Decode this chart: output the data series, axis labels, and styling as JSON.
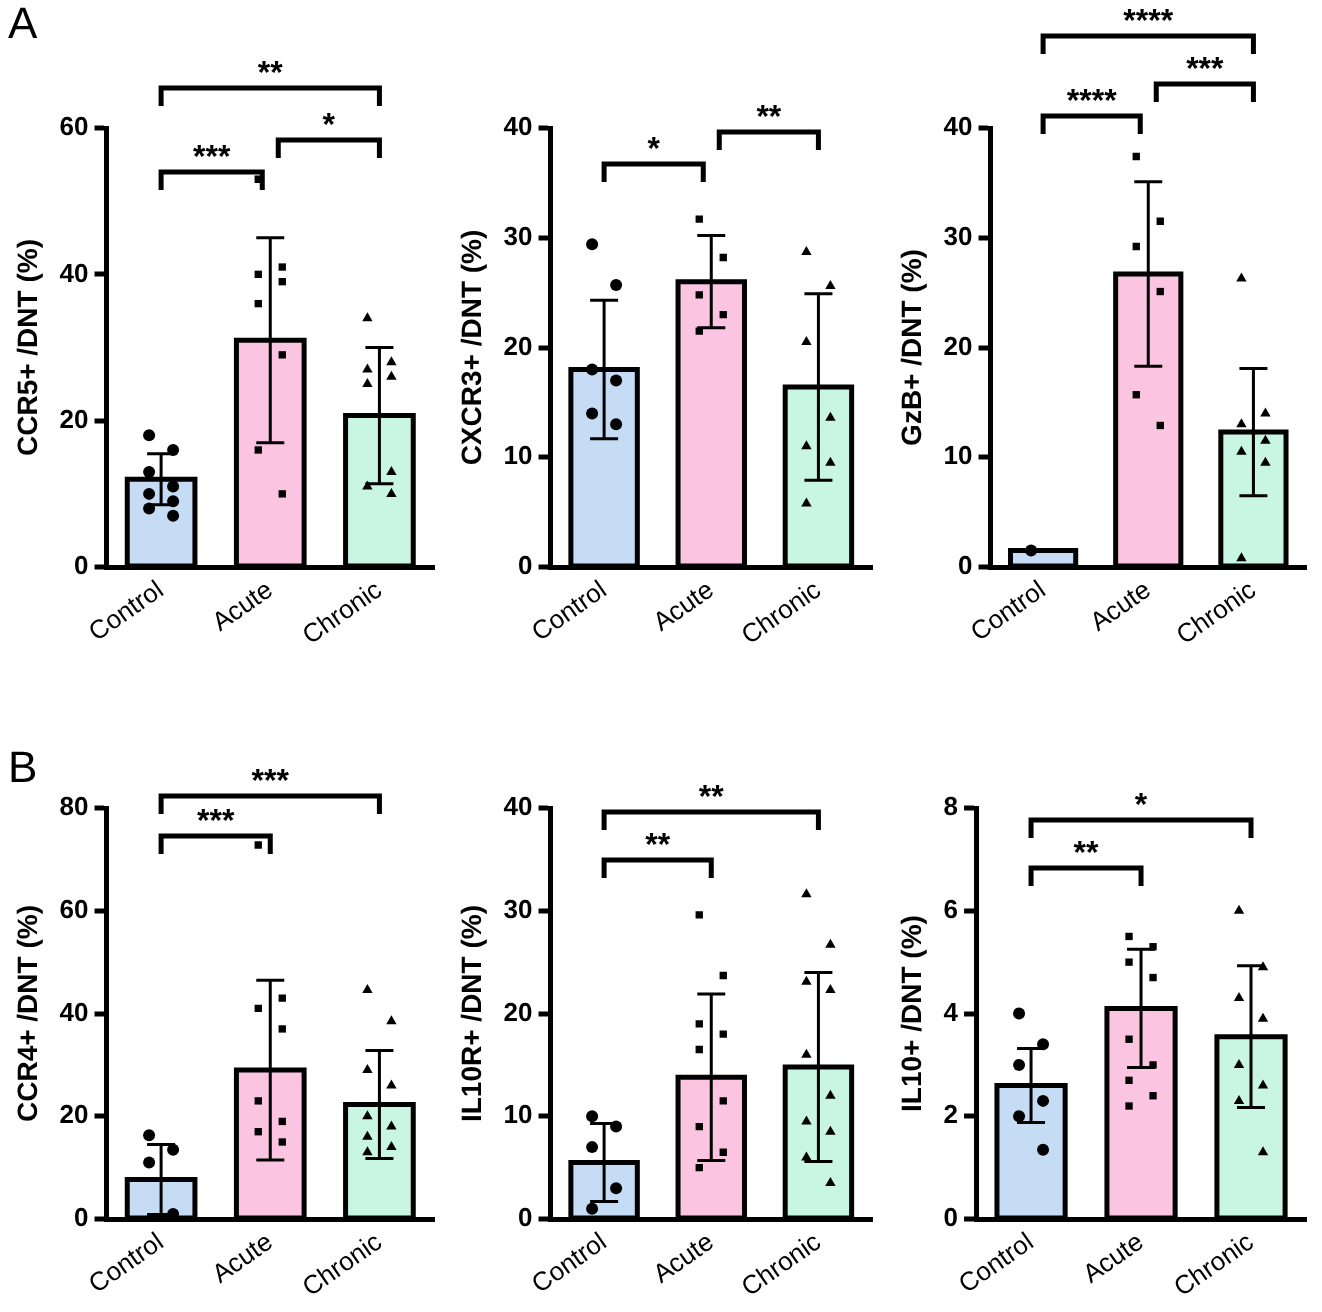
{
  "chart_data": [
    {
      "type": "bar",
      "ylabel": "CCR5+ /DNT (%)",
      "categories": [
        "Control",
        "Acute",
        "Chronic"
      ],
      "ylim": [
        0,
        60
      ],
      "yticks": [
        0,
        20,
        40,
        60
      ],
      "grid": false,
      "annotations": [
        "A",
        "***",
        "*",
        "**"
      ],
      "series": [
        {
          "colors": [
            "#c6dcf5",
            "#fbc4e0",
            "#c9f5e3"
          ],
          "values": [
            12,
            31,
            20.7
          ],
          "errors": [
            3.5,
            14,
            9.3
          ]
        },
        {
          "type": "scatter",
          "marker": "circle",
          "color": "#000000",
          "x": [
            "Control",
            "Control",
            "Control",
            "Control",
            "Control",
            "Control",
            "Control",
            "Control"
          ],
          "values": [
            18,
            16,
            13,
            11,
            10,
            9,
            8,
            7
          ]
        },
        {
          "type": "scatter",
          "marker": "square",
          "color": "#000000",
          "x": [
            "Acute",
            "Acute",
            "Acute",
            "Acute",
            "Acute",
            "Acute",
            "Acute",
            "Acute"
          ],
          "values": [
            53,
            41,
            40,
            39,
            36,
            29,
            16,
            10
          ]
        },
        {
          "type": "scatter",
          "marker": "triangle",
          "color": "#000000",
          "x": [
            "Chronic",
            "Chronic",
            "Chronic",
            "Chronic",
            "Chronic",
            "Chronic",
            "Chronic",
            "Chronic"
          ],
          "values": [
            34,
            28,
            27,
            26,
            25,
            13,
            11,
            10
          ]
        }
      ]
    },
    {
      "type": "bar",
      "ylabel": "CXCR3+ /DNT (%)",
      "categories": [
        "Control",
        "Acute",
        "Chronic"
      ],
      "ylim": [
        0,
        40
      ],
      "yticks": [
        0,
        10,
        20,
        30,
        40
      ],
      "grid": false,
      "annotations": [
        "*",
        "**"
      ],
      "series": [
        {
          "colors": [
            "#c6dcf5",
            "#fbc4e0",
            "#c9f5e3"
          ],
          "values": [
            18,
            26,
            16.4
          ],
          "errors": [
            6.3,
            4.2,
            8.5
          ]
        },
        {
          "type": "scatter",
          "marker": "circle",
          "color": "#000000",
          "x": [
            "Control",
            "Control",
            "Control",
            "Control",
            "Control",
            "Control"
          ],
          "values": [
            29.4,
            25.7,
            18,
            17,
            14,
            13
          ]
        },
        {
          "type": "scatter",
          "marker": "square",
          "color": "#000000",
          "x": [
            "Acute",
            "Acute",
            "Acute",
            "Acute",
            "Acute"
          ],
          "values": [
            31.7,
            28.2,
            24.8,
            23,
            21.5
          ]
        },
        {
          "type": "scatter",
          "marker": "triangle",
          "color": "#000000",
          "x": [
            "Chronic",
            "Chronic",
            "Chronic",
            "Chronic",
            "Chronic",
            "Chronic",
            "Chronic"
          ],
          "values": [
            28.7,
            25.6,
            20.5,
            13.6,
            11,
            9.5,
            5.8
          ]
        }
      ]
    },
    {
      "type": "bar",
      "ylabel": "GzB+ /DNT (%)",
      "categories": [
        "Control",
        "Acute",
        "Chronic"
      ],
      "ylim": [
        0,
        40
      ],
      "yticks": [
        0,
        10,
        20,
        30,
        40
      ],
      "grid": false,
      "annotations": [
        "****",
        "***",
        "****"
      ],
      "series": [
        {
          "colors": [
            "#c6dcf5",
            "#fbc4e0",
            "#c9f5e3"
          ],
          "values": [
            1.5,
            26.7,
            12.3
          ],
          "errors": [
            null,
            8.4,
            5.8
          ]
        },
        {
          "type": "scatter",
          "marker": "circle",
          "color": "#000000",
          "x": [
            "Control"
          ],
          "values": [
            1.5
          ]
        },
        {
          "type": "scatter",
          "marker": "square",
          "color": "#000000",
          "x": [
            "Acute",
            "Acute",
            "Acute",
            "Acute",
            "Acute",
            "Acute"
          ],
          "values": [
            37.4,
            31.5,
            29.2,
            25.1,
            15.7,
            12.9
          ]
        },
        {
          "type": "scatter",
          "marker": "triangle",
          "color": "#000000",
          "x": [
            "Chronic",
            "Chronic",
            "Chronic",
            "Chronic",
            "Chronic",
            "Chronic",
            "Chronic"
          ],
          "values": [
            26.3,
            14,
            13,
            11.5,
            10.5,
            9.5,
            0.8
          ]
        }
      ]
    },
    {
      "type": "bar",
      "ylabel": "CCR4+ /DNT (%)",
      "categories": [
        "Control",
        "Acute",
        "Chronic"
      ],
      "ylim": [
        0,
        80
      ],
      "yticks": [
        0,
        20,
        40,
        60,
        80
      ],
      "grid": false,
      "annotations": [
        "B",
        "***",
        "***"
      ],
      "series": [
        {
          "colors": [
            "#c6dcf5",
            "#fbc4e0",
            "#c9f5e3"
          ],
          "values": [
            7.7,
            29,
            22.3
          ],
          "errors": [
            6.8,
            17.5,
            10.5
          ]
        },
        {
          "type": "scatter",
          "marker": "circle",
          "color": "#000000",
          "x": [
            "Control",
            "Control",
            "Control",
            "Control"
          ],
          "values": [
            16.3,
            13.5,
            11,
            1
          ]
        },
        {
          "type": "scatter",
          "marker": "square",
          "color": "#000000",
          "x": [
            "Acute",
            "Acute",
            "Acute",
            "Acute",
            "Acute",
            "Acute",
            "Acute",
            "Acute"
          ],
          "values": [
            72.8,
            43,
            41,
            37,
            23,
            19,
            17,
            15
          ]
        },
        {
          "type": "scatter",
          "marker": "triangle",
          "color": "#000000",
          "x": [
            "Chronic",
            "Chronic",
            "Chronic",
            "Chronic",
            "Chronic",
            "Chronic",
            "Chronic",
            "Chronic",
            "Chronic"
          ],
          "values": [
            44.6,
            38.5,
            29,
            26,
            20,
            18,
            16,
            14,
            13
          ]
        }
      ]
    },
    {
      "type": "bar",
      "ylabel": "IL10R+ /DNT (%)",
      "categories": [
        "Control",
        "Acute",
        "Chronic"
      ],
      "ylim": [
        0,
        40
      ],
      "yticks": [
        0,
        10,
        20,
        30,
        40
      ],
      "grid": false,
      "annotations": [
        "**",
        "**"
      ],
      "series": [
        {
          "colors": [
            "#c6dcf5",
            "#fbc4e0",
            "#c9f5e3"
          ],
          "values": [
            5.5,
            13.8,
            14.8
          ],
          "errors": [
            3.8,
            8.1,
            9.2
          ]
        },
        {
          "type": "scatter",
          "marker": "circle",
          "color": "#000000",
          "x": [
            "Control",
            "Control",
            "Control",
            "Control",
            "Control"
          ],
          "values": [
            10,
            9,
            7,
            3,
            1
          ]
        },
        {
          "type": "scatter",
          "marker": "square",
          "color": "#000000",
          "x": [
            "Acute",
            "Acute",
            "Acute",
            "Acute",
            "Acute",
            "Acute",
            "Acute",
            "Acute",
            "Acute"
          ],
          "values": [
            29.6,
            23.7,
            19,
            18,
            16.5,
            11.5,
            9,
            6.5,
            5
          ]
        },
        {
          "type": "scatter",
          "marker": "triangle",
          "color": "#000000",
          "x": [
            "Chronic",
            "Chronic",
            "Chronic",
            "Chronic",
            "Chronic",
            "Chronic",
            "Chronic",
            "Chronic",
            "Chronic",
            "Chronic"
          ],
          "values": [
            31.6,
            26.7,
            23.1,
            22.3,
            16,
            12,
            9.5,
            8.5,
            6,
            3.5
          ]
        }
      ]
    },
    {
      "type": "bar",
      "ylabel": "IL10+ /DNT (%)",
      "categories": [
        "Control",
        "Acute",
        "Chronic"
      ],
      "ylim": [
        0,
        8
      ],
      "yticks": [
        0,
        2,
        4,
        6,
        8
      ],
      "grid": false,
      "annotations": [
        "**",
        "*"
      ],
      "series": [
        {
          "colors": [
            "#c6dcf5",
            "#fbc4e0",
            "#c9f5e3"
          ],
          "values": [
            2.6,
            4.1,
            3.55
          ],
          "errors": [
            0.72,
            1.15,
            1.38
          ]
        },
        {
          "type": "scatter",
          "marker": "circle",
          "color": "#000000",
          "x": [
            "Control",
            "Control",
            "Control",
            "Control",
            "Control",
            "Control"
          ],
          "values": [
            4.0,
            3.4,
            3.0,
            2.3,
            2.0,
            1.35
          ]
        },
        {
          "type": "scatter",
          "marker": "square",
          "color": "#000000",
          "x": [
            "Acute",
            "Acute",
            "Acute",
            "Acute",
            "Acute",
            "Acute",
            "Acute",
            "Acute",
            "Acute"
          ],
          "values": [
            5.5,
            5.3,
            5.0,
            4.7,
            3.5,
            3.0,
            2.7,
            2.4,
            2.2
          ]
        },
        {
          "type": "scatter",
          "marker": "triangle",
          "color": "#000000",
          "x": [
            "Chronic",
            "Chronic",
            "Chronic",
            "Chronic",
            "Chronic",
            "Chronic",
            "Chronic",
            "Chronic"
          ],
          "values": [
            6.0,
            4.9,
            4.3,
            3.9,
            3.0,
            2.6,
            2.3,
            1.3
          ]
        }
      ]
    }
  ]
}
